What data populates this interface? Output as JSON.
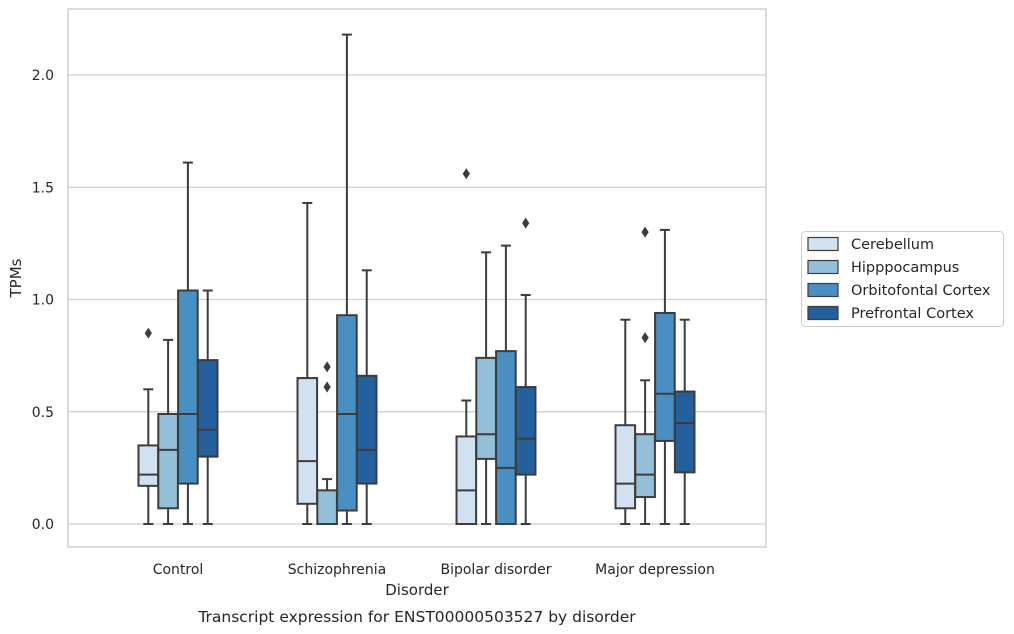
{
  "chart_data": {
    "type": "box",
    "caption": "Transcript expression for ENST00000503527 by disorder",
    "xlabel": "Disorder",
    "ylabel": "TPMs",
    "ylim": [
      -0.11,
      2.3
    ],
    "yticks": [
      0.0,
      0.5,
      1.0,
      1.5,
      2.0
    ],
    "ytick_labels": [
      "0.0",
      "0.5",
      "1.0",
      "1.5",
      "2.0"
    ],
    "grid": "horizontal",
    "legend_position": "right",
    "categories": [
      "Control",
      "Schizophrenia",
      "Bipolar disorder",
      "Major depression"
    ],
    "series": [
      {
        "name": "Cerebellum",
        "color": "#d1e1f0",
        "boxes": [
          {
            "whislo": 0.0,
            "q1": 0.17,
            "med": 0.22,
            "q3": 0.35,
            "whishi": 0.6,
            "fliers": [
              0.85
            ]
          },
          {
            "whislo": 0.0,
            "q1": 0.09,
            "med": 0.28,
            "q3": 0.65,
            "whishi": 1.43,
            "fliers": []
          },
          {
            "whislo": 0.0,
            "q1": 0.0,
            "med": 0.15,
            "q3": 0.39,
            "whishi": 0.55,
            "fliers": [
              1.56
            ]
          },
          {
            "whislo": 0.0,
            "q1": 0.07,
            "med": 0.18,
            "q3": 0.44,
            "whishi": 0.91,
            "fliers": []
          }
        ]
      },
      {
        "name": "Hipppocampus",
        "color": "#93bfd9",
        "boxes": [
          {
            "whislo": 0.0,
            "q1": 0.07,
            "med": 0.33,
            "q3": 0.49,
            "whishi": 0.82,
            "fliers": []
          },
          {
            "whislo": 0.0,
            "q1": 0.0,
            "med": 0.0,
            "q3": 0.15,
            "whishi": 0.2,
            "fliers": [
              0.61,
              0.7
            ]
          },
          {
            "whislo": 0.0,
            "q1": 0.29,
            "med": 0.4,
            "q3": 0.74,
            "whishi": 1.21,
            "fliers": []
          },
          {
            "whislo": 0.0,
            "q1": 0.12,
            "med": 0.22,
            "q3": 0.4,
            "whishi": 0.64,
            "fliers": [
              0.83,
              1.3
            ]
          }
        ]
      },
      {
        "name": "Orbitofontal Cortex",
        "color": "#4a8fc3",
        "boxes": [
          {
            "whislo": 0.0,
            "q1": 0.18,
            "med": 0.49,
            "q3": 1.04,
            "whishi": 1.61,
            "fliers": []
          },
          {
            "whislo": 0.0,
            "q1": 0.06,
            "med": 0.49,
            "q3": 0.93,
            "whishi": 2.18,
            "fliers": []
          },
          {
            "whislo": 0.0,
            "q1": 0.0,
            "med": 0.25,
            "q3": 0.77,
            "whishi": 1.24,
            "fliers": []
          },
          {
            "whislo": 0.0,
            "q1": 0.37,
            "med": 0.58,
            "q3": 0.94,
            "whishi": 1.31,
            "fliers": []
          }
        ]
      },
      {
        "name": "Prefrontal Cortex",
        "color": "#245f9e",
        "boxes": [
          {
            "whislo": 0.0,
            "q1": 0.3,
            "med": 0.42,
            "q3": 0.73,
            "whishi": 1.04,
            "fliers": []
          },
          {
            "whislo": 0.0,
            "q1": 0.18,
            "med": 0.33,
            "q3": 0.66,
            "whishi": 1.13,
            "fliers": []
          },
          {
            "whislo": 0.0,
            "q1": 0.22,
            "med": 0.38,
            "q3": 0.61,
            "whishi": 1.02,
            "fliers": [
              1.34
            ]
          },
          {
            "whislo": 0.0,
            "q1": 0.23,
            "med": 0.45,
            "q3": 0.59,
            "whishi": 0.91,
            "fliers": []
          }
        ]
      }
    ]
  },
  "colors": {
    "outline": "#3c3c3c",
    "grid": "#cfcfcf",
    "frame": "#cfcfcf",
    "text": "#262626"
  }
}
